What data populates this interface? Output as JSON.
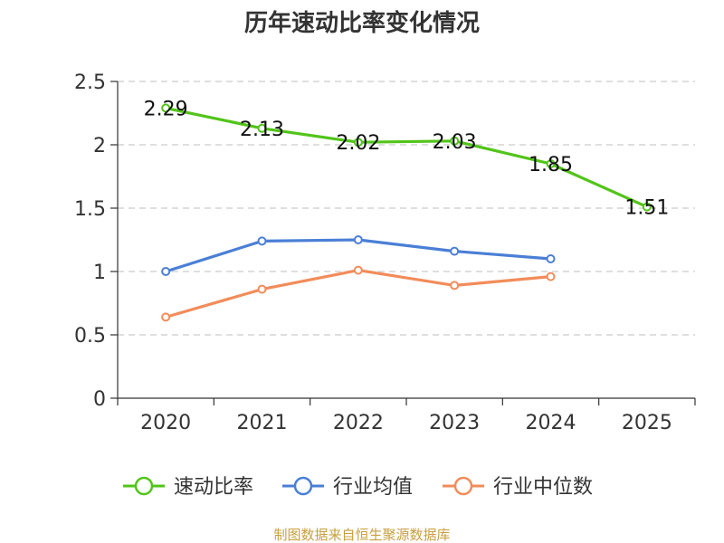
{
  "chart_data": {
    "type": "line",
    "title": "历年速动比率变化情况",
    "categories": [
      "2020",
      "2021",
      "2022",
      "2023",
      "2024",
      "2025"
    ],
    "ylim": [
      0,
      2.5
    ],
    "yticks": [
      "0",
      "0.5",
      "1",
      "1.5",
      "2",
      "2.5"
    ],
    "grid": true,
    "legend_position": "bottom",
    "series": [
      {
        "name": "速动比率",
        "color": "#52c41a",
        "values": [
          2.29,
          2.13,
          2.02,
          2.03,
          1.85,
          1.51
        ],
        "labels": [
          "2.29",
          "2.13",
          "2.02",
          "2.03",
          "1.85",
          "1.51"
        ]
      },
      {
        "name": "行业均值",
        "color": "#4a7fd6",
        "values": [
          1.0,
          1.24,
          1.25,
          1.16,
          1.1,
          null
        ]
      },
      {
        "name": "行业中位数",
        "color": "#f28c5a",
        "values": [
          0.64,
          0.86,
          1.01,
          0.89,
          0.96,
          null
        ]
      }
    ]
  },
  "source": {
    "text": "制图数据来自恒生聚源数据库",
    "color": "#c8a040"
  }
}
